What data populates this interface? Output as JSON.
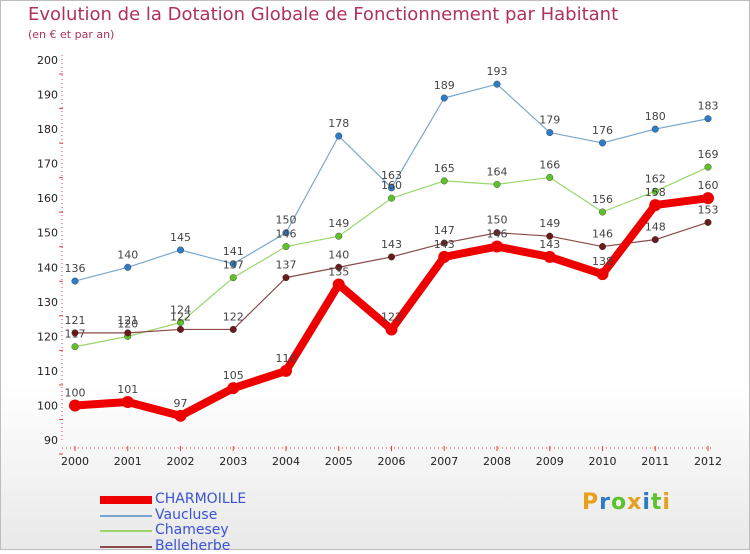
{
  "chart_data": {
    "type": "line",
    "title": "Evolution de la Dotation Globale de Fonctionnement par Habitant",
    "subtitle": "(en € et par an)",
    "categories": [
      "2000",
      "2001",
      "2002",
      "2003",
      "2004",
      "2005",
      "2006",
      "2007",
      "2008",
      "2009",
      "2010",
      "2011",
      "2012"
    ],
    "ylim": [
      90,
      200
    ],
    "yticks": [
      90,
      100,
      110,
      120,
      130,
      140,
      150,
      160,
      170,
      180,
      190,
      200
    ],
    "grid": false,
    "legend_position": "bottom-left",
    "series": [
      {
        "name": "Vaucluse",
        "color": "#7aa7cf",
        "marker": "#2d7cc7",
        "width": 1.2,
        "values": [
          136,
          140,
          145,
          141,
          150,
          178,
          163,
          189,
          193,
          179,
          176,
          180,
          183
        ]
      },
      {
        "name": "Chamesey",
        "color": "#9ad66b",
        "marker": "#5ec22a",
        "width": 1.2,
        "values": [
          117,
          120,
          124,
          137,
          146,
          149,
          160,
          165,
          164,
          166,
          156,
          162,
          169
        ]
      },
      {
        "name": "Belleherbe",
        "color": "#8c4a4a",
        "marker": "#6a1a1a",
        "width": 1.2,
        "values": [
          121,
          121,
          122,
          122,
          137,
          140,
          143,
          147,
          150,
          149,
          146,
          148,
          153
        ]
      },
      {
        "name": "CHARMOILLE",
        "color": "#ee0000",
        "marker": "#ee0000",
        "width": 8,
        "values": [
          100,
          101,
          97,
          105,
          110,
          135,
          122,
          143,
          146,
          143,
          138,
          158,
          160
        ]
      }
    ]
  },
  "legend_order": [
    "CHARMOILLE",
    "Vaucluse",
    "Chamesey",
    "Belleherbe"
  ],
  "logo": {
    "letters": [
      "P",
      "r",
      "o",
      "x",
      "i",
      "t",
      "i"
    ],
    "colors": [
      "#e8a01c",
      "#2d7cc7",
      "#5ec22a",
      "#e8a01c",
      "#2d7cc7",
      "#5ec22a",
      "#e8a01c"
    ]
  }
}
